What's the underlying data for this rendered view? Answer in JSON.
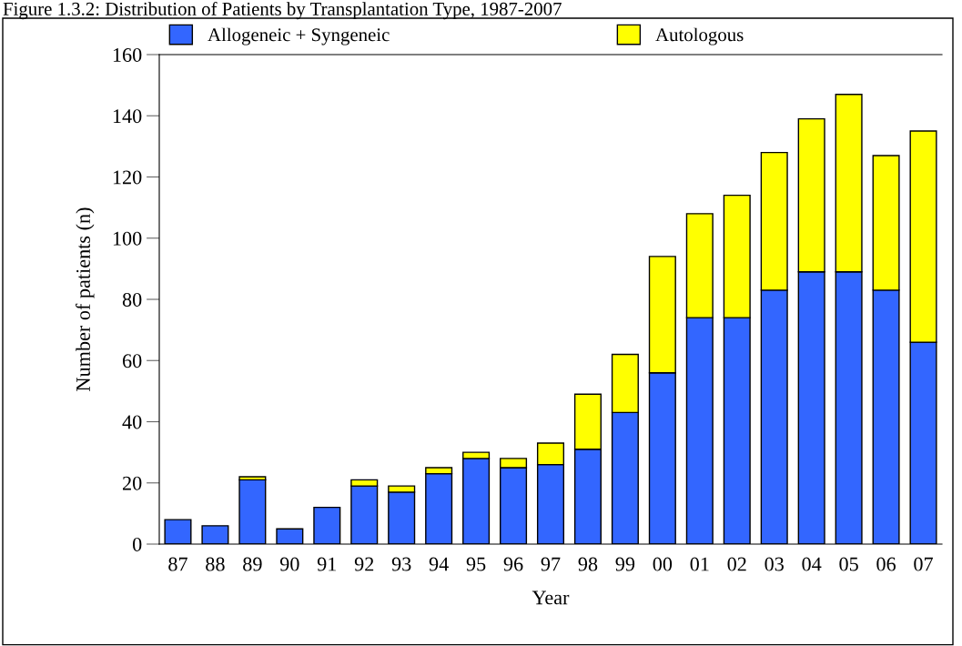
{
  "chart_data": {
    "type": "bar",
    "stacked": true,
    "title": "Figure 1.3.2: Distribution of Patients by Transplantation Type, 1987-2007",
    "xlabel": "Year",
    "ylabel": "Number of patients (n)",
    "categories": [
      "87",
      "88",
      "89",
      "90",
      "91",
      "92",
      "93",
      "94",
      "95",
      "96",
      "97",
      "98",
      "99",
      "00",
      "01",
      "02",
      "03",
      "04",
      "05",
      "06",
      "07"
    ],
    "series": [
      {
        "name": "Allogeneic + Syngeneic",
        "color": "#3366ff",
        "values": [
          8,
          6,
          21,
          5,
          12,
          19,
          17,
          23,
          28,
          25,
          26,
          31,
          43,
          56,
          74,
          74,
          83,
          89,
          89,
          83,
          66
        ]
      },
      {
        "name": "Autologous",
        "color": "#ffff00",
        "values": [
          null,
          null,
          1,
          null,
          null,
          2,
          2,
          2,
          2,
          3,
          7,
          18,
          19,
          38,
          34,
          40,
          45,
          50,
          58,
          44,
          69
        ]
      }
    ],
    "ylim": [
      0,
      160
    ],
    "yticks": [
      0,
      20,
      40,
      60,
      80,
      100,
      120,
      140,
      160
    ],
    "grid": false,
    "legend": "top"
  }
}
